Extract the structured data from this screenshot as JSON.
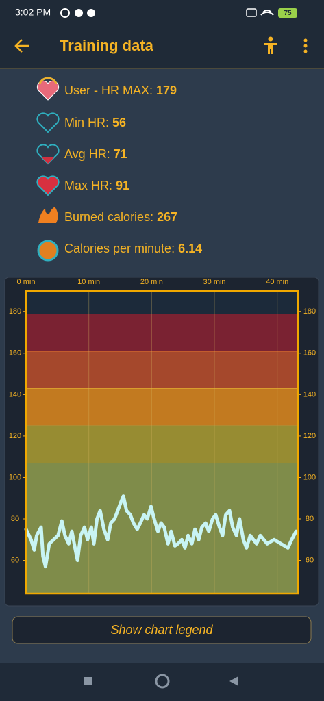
{
  "status_bar": {
    "time": "3:02 PM",
    "battery": "75"
  },
  "app_bar": {
    "title": "Training data"
  },
  "stats": [
    {
      "label": "User - HR MAX:",
      "value": 179
    },
    {
      "label": "Min HR:",
      "value": 56
    },
    {
      "label": "Avg HR:",
      "value": 71
    },
    {
      "label": "Max HR:",
      "value": 91
    },
    {
      "label": "Burned calories:",
      "value": 267
    },
    {
      "label": "Calories per minute:",
      "value": 6.14
    }
  ],
  "chart_data": {
    "type": "line",
    "xlim": [
      0,
      43.3
    ],
    "xticks": [
      {
        "value": 0,
        "label": "0 min"
      },
      {
        "value": 10,
        "label": "10 min"
      },
      {
        "value": 20,
        "label": "20 min"
      },
      {
        "value": 30,
        "label": "30 min"
      },
      {
        "value": 40,
        "label": "40 min"
      }
    ],
    "ylim": [
      44,
      190
    ],
    "yticks": [
      60,
      80,
      100,
      120,
      140,
      160,
      180
    ],
    "zones": [
      {
        "from": 44,
        "to": 107,
        "color": "#7f8c4a",
        "edge": "#49b8a8"
      },
      {
        "from": 107,
        "to": 125,
        "color": "#978c32",
        "edge": "#6cc070"
      },
      {
        "from": 125,
        "to": 143,
        "color": "#c27a20",
        "edge": "#f0c030"
      },
      {
        "from": 143,
        "to": 161,
        "color": "#a5482c",
        "edge": "#e07030"
      },
      {
        "from": 161,
        "to": 179,
        "color": "#7a2232",
        "edge": "#c04040"
      },
      {
        "from": 179,
        "to": 190,
        "color": "#1c2a3a",
        "edge": "#1c2a3a"
      }
    ],
    "x": [
      0,
      0.8,
      1.3,
      1.7,
      2.4,
      2.7,
      3.1,
      3.7,
      4.4,
      5.1,
      5.7,
      6.2,
      6.8,
      7.3,
      7.8,
      8.2,
      8.7,
      9.3,
      9.8,
      10.4,
      10.8,
      11.3,
      11.8,
      12.4,
      13.0,
      13.5,
      14.1,
      14.6,
      15.1,
      15.5,
      16.0,
      16.6,
      17.1,
      17.7,
      18.2,
      18.8,
      19.3,
      19.9,
      20.4,
      21.0,
      21.5,
      22.0,
      22.6,
      23.1,
      23.7,
      24.2,
      24.8,
      25.3,
      25.8,
      26.4,
      26.9,
      27.5,
      28.0,
      28.6,
      29.1,
      29.7,
      30.2,
      30.8,
      31.3,
      31.8,
      32.4,
      32.9,
      33.5,
      34.0,
      34.6,
      35.1,
      35.7,
      36.2,
      36.7,
      37.3,
      38.4,
      39.5,
      40.6,
      41.7,
      42.3,
      43.0
    ],
    "series": [
      {
        "name": "HR",
        "color": "#c8f4f4",
        "values": [
          75,
          70,
          65,
          72,
          76,
          62,
          57,
          68,
          70,
          72,
          79,
          72,
          68,
          74,
          66,
          60,
          72,
          76,
          70,
          76,
          68,
          80,
          84,
          75,
          70,
          78,
          80,
          84,
          88,
          91,
          84,
          82,
          78,
          75,
          78,
          82,
          80,
          86,
          80,
          74,
          78,
          76,
          68,
          74,
          67,
          68,
          70,
          66,
          72,
          68,
          75,
          70,
          76,
          78,
          74,
          80,
          82,
          76,
          72,
          82,
          84,
          76,
          72,
          80,
          70,
          66,
          72,
          70,
          68,
          72,
          68,
          70,
          68,
          66,
          70,
          74
        ]
      }
    ]
  },
  "button": {
    "label": "Show chart legend"
  }
}
